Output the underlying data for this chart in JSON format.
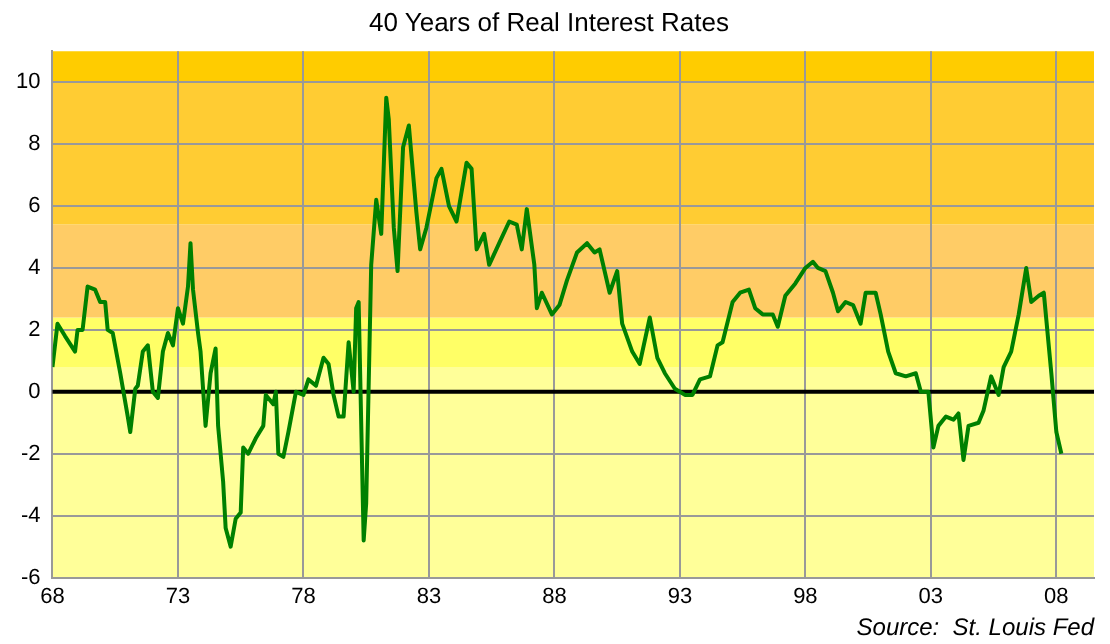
{
  "chart_data": {
    "type": "line",
    "title": "40 Years of Real Interest Rates",
    "annotations": [
      "Source:  St. Louis Fed"
    ],
    "x": [
      1968.0,
      1968.2,
      1968.5,
      1968.9,
      1969.0,
      1969.2,
      1969.4,
      1969.7,
      1969.9,
      1970.1,
      1970.2,
      1970.4,
      1970.7,
      1971.0,
      1971.1,
      1971.3,
      1971.4,
      1971.6,
      1971.8,
      1972.0,
      1972.2,
      1972.4,
      1972.6,
      1972.8,
      1973.0,
      1973.2,
      1973.4,
      1973.5,
      1973.6,
      1973.8,
      1973.9,
      1974.1,
      1974.3,
      1974.5,
      1974.6,
      1974.8,
      1974.9,
      1975.1,
      1975.3,
      1975.5,
      1975.6,
      1975.8,
      1976.1,
      1976.4,
      1976.5,
      1976.8,
      1976.9,
      1977.0,
      1977.2,
      1977.4,
      1977.7,
      1978.0,
      1978.2,
      1978.5,
      1978.8,
      1979.0,
      1979.2,
      1979.4,
      1979.6,
      1979.8,
      1980.0,
      1980.1,
      1980.2,
      1980.4,
      1980.5,
      1980.7,
      1980.9,
      1981.1,
      1981.3,
      1981.4,
      1981.6,
      1981.75,
      1981.97,
      1982.2,
      1982.5,
      1982.65,
      1982.9,
      1983.3,
      1983.5,
      1983.8,
      1984.1,
      1984.5,
      1984.7,
      1984.9,
      1985.2,
      1985.4,
      1985.8,
      1986.2,
      1986.5,
      1986.7,
      1986.9,
      1987.2,
      1987.3,
      1987.5,
      1987.9,
      1988.2,
      1988.5,
      1988.9,
      1989.3,
      1989.6,
      1989.8,
      1990.2,
      1990.5,
      1990.7,
      1991.1,
      1991.4,
      1991.8,
      1992.1,
      1992.4,
      1992.8,
      1993.2,
      1993.5,
      1993.8,
      1994.2,
      1994.5,
      1994.7,
      1995.1,
      1995.4,
      1995.75,
      1996.0,
      1996.3,
      1996.7,
      1996.9,
      1997.2,
      1997.6,
      1998.0,
      1998.3,
      1998.5,
      1998.8,
      1999.1,
      1999.3,
      1999.6,
      1999.9,
      2000.2,
      2000.4,
      2000.8,
      2001.0,
      2001.3,
      2001.6,
      2002.0,
      2002.4,
      2002.6,
      2002.9,
      2003.1,
      2003.3,
      2003.6,
      2003.9,
      2004.1,
      2004.3,
      2004.5,
      2004.9,
      2005.1,
      2005.4,
      2005.7,
      2005.9,
      2006.2,
      2006.5,
      2006.8,
      2007.0,
      2007.3,
      2007.5,
      2007.8,
      2008.0,
      2008.2
    ],
    "series": [
      {
        "color": "#008000",
        "values": [
          0.8,
          2.2,
          1.8,
          1.3,
          2.0,
          2.0,
          3.4,
          3.3,
          2.9,
          2.9,
          2.0,
          1.9,
          0.6,
          -0.8,
          -1.3,
          0.1,
          0.2,
          1.3,
          1.5,
          0,
          -0.2,
          1.3,
          1.9,
          1.5,
          2.7,
          2.2,
          3.4,
          4.8,
          3.3,
          1.9,
          1.3,
          -1.1,
          0.6,
          1.4,
          -1.1,
          -2.9,
          -4.4,
          -5.0,
          -4.1,
          -3.9,
          -1.8,
          -2.0,
          -1.5,
          -1.1,
          -0.1,
          -0.4,
          0,
          -2.0,
          -2.1,
          -1.3,
          0,
          -0.1,
          0.4,
          0.2,
          1.1,
          0.9,
          -0.1,
          -0.8,
          -0.8,
          1.6,
          0,
          2.7,
          2.9,
          -4.8,
          -3.6,
          4.1,
          6.2,
          5.1,
          9.5,
          8.8,
          5.3,
          3.9,
          7.9,
          8.6,
          5.8,
          4.6,
          5.3,
          6.9,
          7.2,
          6.0,
          5.5,
          7.4,
          7.2,
          4.6,
          5.1,
          4.1,
          4.8,
          5.5,
          5.4,
          4.6,
          5.9,
          4.1,
          2.7,
          3.2,
          2.5,
          2.8,
          3.6,
          4.5,
          4.8,
          4.5,
          4.6,
          3.2,
          3.9,
          2.2,
          1.3,
          0.9,
          2.4,
          1.1,
          0.6,
          0.1,
          -0.1,
          -0.1,
          0.4,
          0.5,
          1.5,
          1.6,
          2.9,
          3.2,
          3.3,
          2.7,
          2.5,
          2.5,
          2.1,
          3.1,
          3.5,
          4.0,
          4.2,
          4.0,
          3.9,
          3.2,
          2.6,
          2.9,
          2.8,
          2.2,
          3.2,
          3.2,
          2.5,
          1.3,
          0.6,
          0.5,
          0.6,
          0,
          0,
          -1.8,
          -1.1,
          -0.8,
          -0.9,
          -0.7,
          -2.2,
          -1.1,
          -1.0,
          -0.6,
          0.5,
          -0.1,
          0.8,
          1.3,
          2.5,
          4.0,
          2.9,
          3.1,
          3.2,
          0.6,
          -1.3,
          -2.0
        ]
      }
    ],
    "xlim": [
      1968,
      2009.5
    ],
    "xticks": [
      {
        "value": 1968,
        "label": "68"
      },
      {
        "value": 1973,
        "label": "73"
      },
      {
        "value": 1978,
        "label": "78"
      },
      {
        "value": 1983,
        "label": "83"
      },
      {
        "value": 1988,
        "label": "88"
      },
      {
        "value": 1993,
        "label": "93"
      },
      {
        "value": 1998,
        "label": "98"
      },
      {
        "value": 2003,
        "label": "03"
      },
      {
        "value": 2008,
        "label": "08"
      }
    ],
    "ylim": [
      -6,
      11
    ],
    "yticks": [
      -6,
      -4,
      -2,
      0,
      2,
      4,
      6,
      8,
      10
    ],
    "grid": true,
    "legend": false,
    "marker": "none",
    "line_style": "solid",
    "ref_lines": [
      {
        "axis": "y",
        "value": 0,
        "color": "#000000"
      }
    ],
    "bands": [
      {
        "axis": "y",
        "from": -6,
        "to": 0.8,
        "color": "#ffff99"
      },
      {
        "axis": "y",
        "from": 0.8,
        "to": 2.4,
        "color": "#ffff66"
      },
      {
        "axis": "y",
        "from": 2.4,
        "to": 5.4,
        "color": "#ffcc66"
      },
      {
        "axis": "y",
        "from": 5.4,
        "to": 10,
        "color": "#ffcc33"
      },
      {
        "axis": "y",
        "from": 10,
        "to": 11,
        "color": "#ffcc00"
      }
    ]
  }
}
